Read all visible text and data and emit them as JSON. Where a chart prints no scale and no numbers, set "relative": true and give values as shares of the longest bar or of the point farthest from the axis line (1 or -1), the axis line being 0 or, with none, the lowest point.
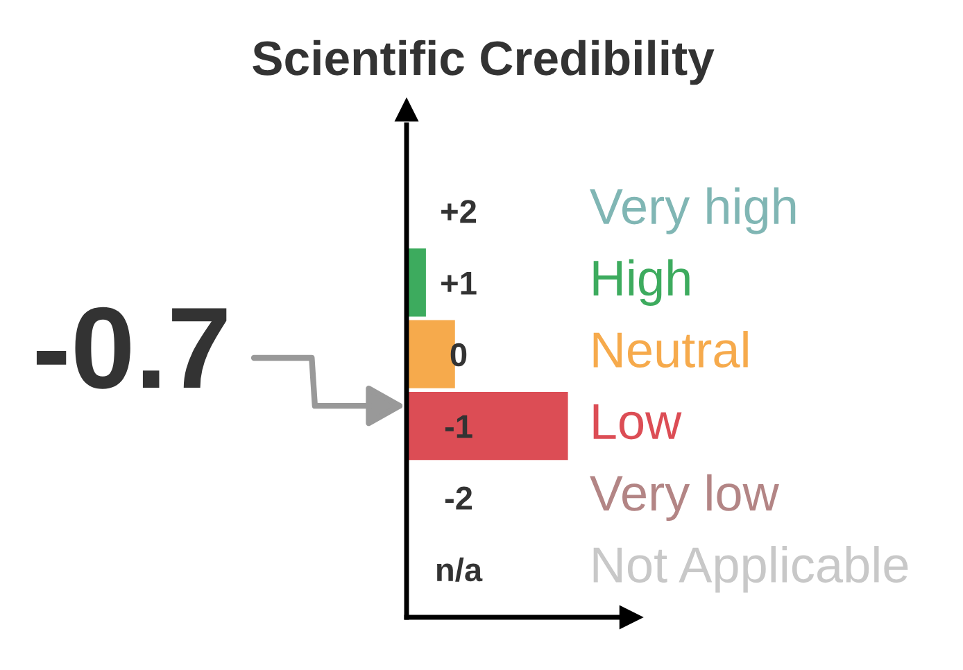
{
  "chart_data": {
    "type": "bar",
    "orientation": "horizontal",
    "relative": true,
    "title": "Scientific Credibility",
    "categories": [
      "+2",
      "+1",
      "0",
      "-1",
      "-2",
      "n/a"
    ],
    "series": [
      {
        "name": "Very high",
        "color": "#80b6b4",
        "values": [
          0,
          null,
          null,
          null,
          null,
          null
        ]
      },
      {
        "name": "High",
        "color": "#3dab5e",
        "values": [
          null,
          0.12,
          null,
          null,
          null,
          null
        ]
      },
      {
        "name": "Neutral",
        "color": "#f6aa4c",
        "values": [
          null,
          null,
          0.3,
          null,
          null,
          null
        ]
      },
      {
        "name": "Low",
        "color": "#dc4d55",
        "values": [
          null,
          null,
          null,
          1,
          null,
          null
        ]
      },
      {
        "name": "Very low",
        "color": "#b38585",
        "values": [
          null,
          null,
          null,
          null,
          0,
          null
        ]
      },
      {
        "name": "Not Applicable",
        "color": "#c8c8c8",
        "values": [
          null,
          null,
          null,
          null,
          null,
          0
        ]
      }
    ],
    "annotations": [
      "-0.7"
    ],
    "grid": false,
    "legend": false
  }
}
